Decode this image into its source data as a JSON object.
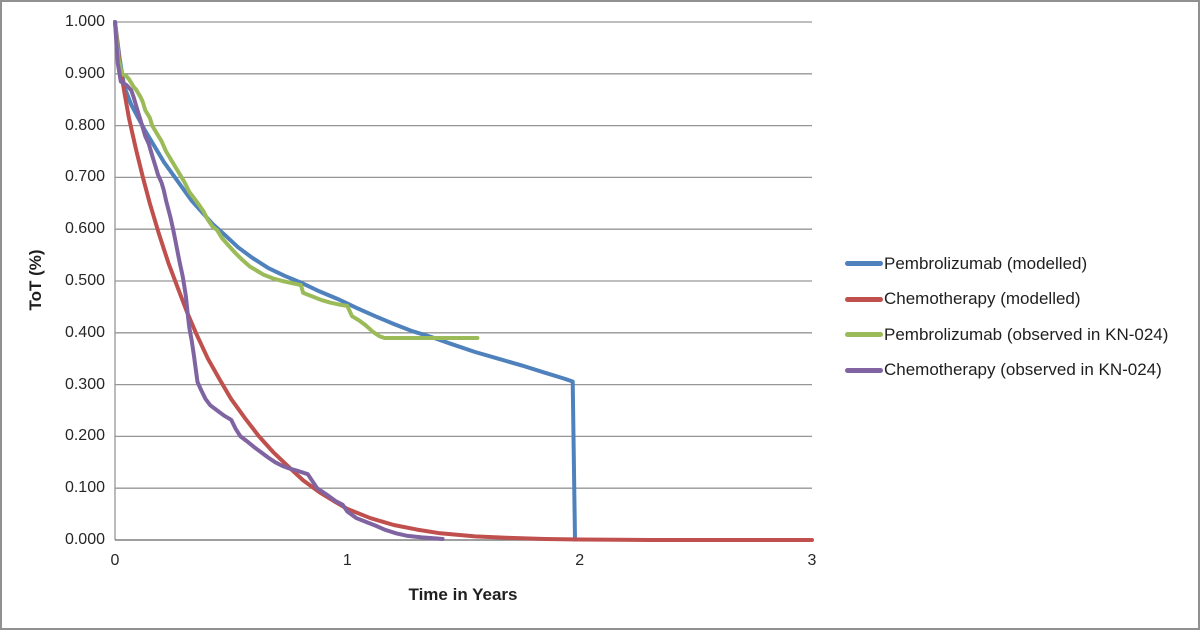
{
  "chart_data": {
    "type": "line",
    "title": "",
    "xlabel": "Time in Years",
    "ylabel": "ToT (%)",
    "xlim": [
      0,
      3
    ],
    "ylim": [
      0,
      1
    ],
    "grid": "horizontal",
    "legend_position": "right",
    "gridline_color": "#969696",
    "axis_color": "#7f7f7f",
    "x_ticks": {
      "values": [
        0,
        1,
        2,
        3
      ],
      "labels": [
        "0",
        "1",
        "2",
        "3"
      ]
    },
    "y_ticks": {
      "values": [
        0,
        0.1,
        0.2,
        0.3,
        0.4,
        0.5,
        0.6,
        0.7,
        0.8,
        0.9,
        1.0
      ],
      "labels": [
        "0.000",
        "0.100",
        "0.200",
        "0.300",
        "0.400",
        "0.500",
        "0.600",
        "0.700",
        "0.800",
        "0.900",
        "1.000"
      ]
    },
    "series": [
      {
        "name": "pembrolizumab-modelled",
        "label": "Pembrolizumab (modelled)",
        "color": "#4F81BD",
        "points": [
          [
            0,
            1.0
          ],
          [
            0.02,
            0.93
          ],
          [
            0.04,
            0.875
          ],
          [
            0.07,
            0.84
          ],
          [
            0.1,
            0.815
          ],
          [
            0.13,
            0.79
          ],
          [
            0.17,
            0.76
          ],
          [
            0.21,
            0.73
          ],
          [
            0.25,
            0.705
          ],
          [
            0.29,
            0.68
          ],
          [
            0.33,
            0.655
          ],
          [
            0.37,
            0.635
          ],
          [
            0.42,
            0.61
          ],
          [
            0.47,
            0.59
          ],
          [
            0.53,
            0.565
          ],
          [
            0.59,
            0.545
          ],
          [
            0.66,
            0.525
          ],
          [
            0.73,
            0.51
          ],
          [
            0.8,
            0.497
          ],
          [
            0.88,
            0.48
          ],
          [
            0.96,
            0.465
          ],
          [
            1.04,
            0.448
          ],
          [
            1.12,
            0.432
          ],
          [
            1.2,
            0.417
          ],
          [
            1.28,
            0.403
          ],
          [
            1.36,
            0.392
          ],
          [
            1.45,
            0.378
          ],
          [
            1.55,
            0.363
          ],
          [
            1.65,
            0.35
          ],
          [
            1.75,
            0.337
          ],
          [
            1.85,
            0.323
          ],
          [
            1.93,
            0.312
          ],
          [
            1.97,
            0.306
          ],
          [
            1.98,
            0.001
          ]
        ]
      },
      {
        "name": "chemotherapy-modelled",
        "label": "Chemotherapy (modelled)",
        "color": "#C0504D",
        "points": [
          [
            0,
            1.0
          ],
          [
            0.02,
            0.92
          ],
          [
            0.04,
            0.865
          ],
          [
            0.06,
            0.815
          ],
          [
            0.09,
            0.755
          ],
          [
            0.12,
            0.7
          ],
          [
            0.15,
            0.65
          ],
          [
            0.19,
            0.59
          ],
          [
            0.23,
            0.535
          ],
          [
            0.27,
            0.487
          ],
          [
            0.31,
            0.44
          ],
          [
            0.35,
            0.398
          ],
          [
            0.4,
            0.35
          ],
          [
            0.45,
            0.31
          ],
          [
            0.5,
            0.272
          ],
          [
            0.56,
            0.235
          ],
          [
            0.62,
            0.2
          ],
          [
            0.68,
            0.17
          ],
          [
            0.75,
            0.14
          ],
          [
            0.81,
            0.115
          ],
          [
            0.88,
            0.092
          ],
          [
            0.95,
            0.073
          ],
          [
            1.0,
            0.06
          ],
          [
            1.1,
            0.042
          ],
          [
            1.2,
            0.029
          ],
          [
            1.3,
            0.02
          ],
          [
            1.4,
            0.013
          ],
          [
            1.55,
            0.007
          ],
          [
            1.7,
            0.004
          ],
          [
            1.85,
            0.002
          ],
          [
            2.0,
            0.001
          ],
          [
            2.3,
            0.0
          ],
          [
            3.0,
            0.0
          ]
        ]
      },
      {
        "name": "pembrolizumab-observed",
        "label": "Pembrolizumab (observed in KN-024)",
        "color": "#9BBB59",
        "points": [
          [
            0,
            1.0
          ],
          [
            0.015,
            0.93
          ],
          [
            0.03,
            0.9
          ],
          [
            0.05,
            0.895
          ],
          [
            0.06,
            0.89
          ],
          [
            0.08,
            0.875
          ],
          [
            0.09,
            0.87
          ],
          [
            0.11,
            0.855
          ],
          [
            0.12,
            0.845
          ],
          [
            0.13,
            0.83
          ],
          [
            0.15,
            0.815
          ],
          [
            0.16,
            0.8
          ],
          [
            0.18,
            0.785
          ],
          [
            0.2,
            0.77
          ],
          [
            0.22,
            0.75
          ],
          [
            0.24,
            0.735
          ],
          [
            0.26,
            0.72
          ],
          [
            0.28,
            0.705
          ],
          [
            0.3,
            0.69
          ],
          [
            0.32,
            0.672
          ],
          [
            0.34,
            0.66
          ],
          [
            0.36,
            0.648
          ],
          [
            0.38,
            0.635
          ],
          [
            0.4,
            0.618
          ],
          [
            0.42,
            0.605
          ],
          [
            0.44,
            0.598
          ],
          [
            0.46,
            0.583
          ],
          [
            0.49,
            0.568
          ],
          [
            0.52,
            0.553
          ],
          [
            0.55,
            0.54
          ],
          [
            0.58,
            0.528
          ],
          [
            0.61,
            0.52
          ],
          [
            0.64,
            0.512
          ],
          [
            0.68,
            0.505
          ],
          [
            0.72,
            0.5
          ],
          [
            0.76,
            0.496
          ],
          [
            0.8,
            0.492
          ],
          [
            0.81,
            0.477
          ],
          [
            0.85,
            0.47
          ],
          [
            0.89,
            0.463
          ],
          [
            0.93,
            0.458
          ],
          [
            0.97,
            0.454
          ],
          [
            1.0,
            0.452
          ],
          [
            1.02,
            0.432
          ],
          [
            1.05,
            0.424
          ],
          [
            1.08,
            0.414
          ],
          [
            1.11,
            0.402
          ],
          [
            1.14,
            0.393
          ],
          [
            1.16,
            0.39
          ],
          [
            1.56,
            0.39
          ]
        ]
      },
      {
        "name": "chemotherapy-observed",
        "label": "Chemotherapy (observed in KN-024)",
        "color": "#8064A2",
        "points": [
          [
            0,
            1.0
          ],
          [
            0.012,
            0.92
          ],
          [
            0.025,
            0.885
          ],
          [
            0.05,
            0.878
          ],
          [
            0.07,
            0.868
          ],
          [
            0.08,
            0.855
          ],
          [
            0.09,
            0.84
          ],
          [
            0.1,
            0.825
          ],
          [
            0.11,
            0.81
          ],
          [
            0.12,
            0.795
          ],
          [
            0.13,
            0.78
          ],
          [
            0.145,
            0.765
          ],
          [
            0.155,
            0.75
          ],
          [
            0.165,
            0.735
          ],
          [
            0.175,
            0.72
          ],
          [
            0.185,
            0.705
          ],
          [
            0.2,
            0.69
          ],
          [
            0.21,
            0.675
          ],
          [
            0.22,
            0.655
          ],
          [
            0.23,
            0.638
          ],
          [
            0.24,
            0.62
          ],
          [
            0.25,
            0.6
          ],
          [
            0.26,
            0.578
          ],
          [
            0.27,
            0.555
          ],
          [
            0.28,
            0.532
          ],
          [
            0.29,
            0.512
          ],
          [
            0.295,
            0.5
          ],
          [
            0.305,
            0.47
          ],
          [
            0.31,
            0.45
          ],
          [
            0.315,
            0.428
          ],
          [
            0.32,
            0.41
          ],
          [
            0.33,
            0.385
          ],
          [
            0.34,
            0.355
          ],
          [
            0.35,
            0.322
          ],
          [
            0.355,
            0.305
          ],
          [
            0.37,
            0.29
          ],
          [
            0.39,
            0.272
          ],
          [
            0.41,
            0.26
          ],
          [
            0.44,
            0.25
          ],
          [
            0.47,
            0.24
          ],
          [
            0.5,
            0.232
          ],
          [
            0.52,
            0.214
          ],
          [
            0.54,
            0.2
          ],
          [
            0.57,
            0.19
          ],
          [
            0.6,
            0.179
          ],
          [
            0.63,
            0.169
          ],
          [
            0.66,
            0.159
          ],
          [
            0.69,
            0.15
          ],
          [
            0.72,
            0.143
          ],
          [
            0.75,
            0.138
          ],
          [
            0.79,
            0.133
          ],
          [
            0.83,
            0.127
          ],
          [
            0.87,
            0.1
          ],
          [
            0.91,
            0.088
          ],
          [
            0.95,
            0.075
          ],
          [
            0.98,
            0.068
          ],
          [
            1.0,
            0.055
          ],
          [
            1.04,
            0.042
          ],
          [
            1.08,
            0.035
          ],
          [
            1.12,
            0.028
          ],
          [
            1.16,
            0.02
          ],
          [
            1.21,
            0.013
          ],
          [
            1.26,
            0.008
          ],
          [
            1.32,
            0.005
          ],
          [
            1.38,
            0.003
          ],
          [
            1.41,
            0.002
          ]
        ]
      }
    ]
  }
}
